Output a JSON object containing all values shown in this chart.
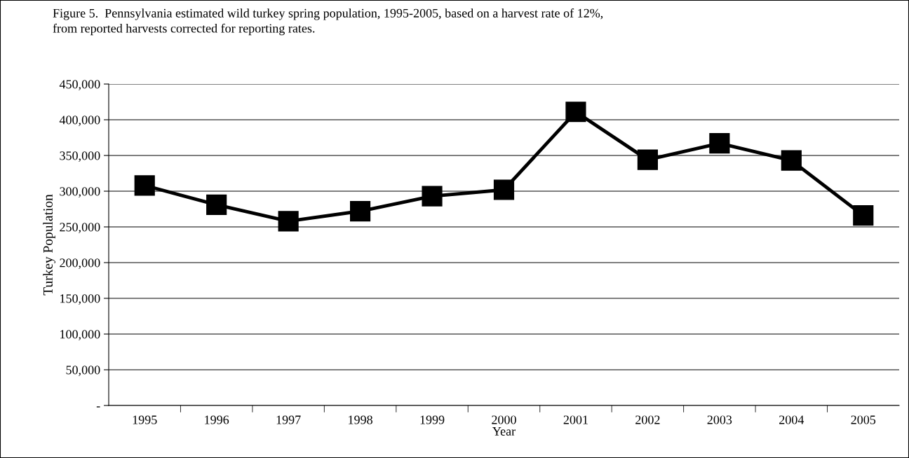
{
  "chart_data": {
    "type": "line",
    "title": "Figure 5.  Pennsylvania estimated wild turkey spring population, 1995-2005, based on a harvest rate of 12%,\nfrom reported harvests corrected for reporting rates.",
    "xlabel": "Year",
    "ylabel": "Turkey Population",
    "categories": [
      "1995",
      "1996",
      "1997",
      "1998",
      "1999",
      "2000",
      "2001",
      "2002",
      "2003",
      "2004",
      "2005"
    ],
    "series": [
      {
        "color": "#000000",
        "values": [
          308000,
          281000,
          258000,
          272000,
          293000,
          302000,
          411000,
          344000,
          367000,
          343000,
          266000
        ]
      }
    ],
    "ylim": [
      0,
      450000
    ],
    "yticks": [
      {
        "value": 0,
        "label": "-"
      },
      {
        "value": 50000,
        "label": "50,000"
      },
      {
        "value": 100000,
        "label": "100,000"
      },
      {
        "value": 150000,
        "label": "150,000"
      },
      {
        "value": 200000,
        "label": "200,000"
      },
      {
        "value": 250000,
        "label": "250,000"
      },
      {
        "value": 300000,
        "label": "300,000"
      },
      {
        "value": 350000,
        "label": "350,000"
      },
      {
        "value": 400000,
        "label": "400,000"
      },
      {
        "value": 450000,
        "label": "450,000"
      }
    ],
    "grid": "y",
    "marker": "square",
    "line_style": "solid"
  }
}
